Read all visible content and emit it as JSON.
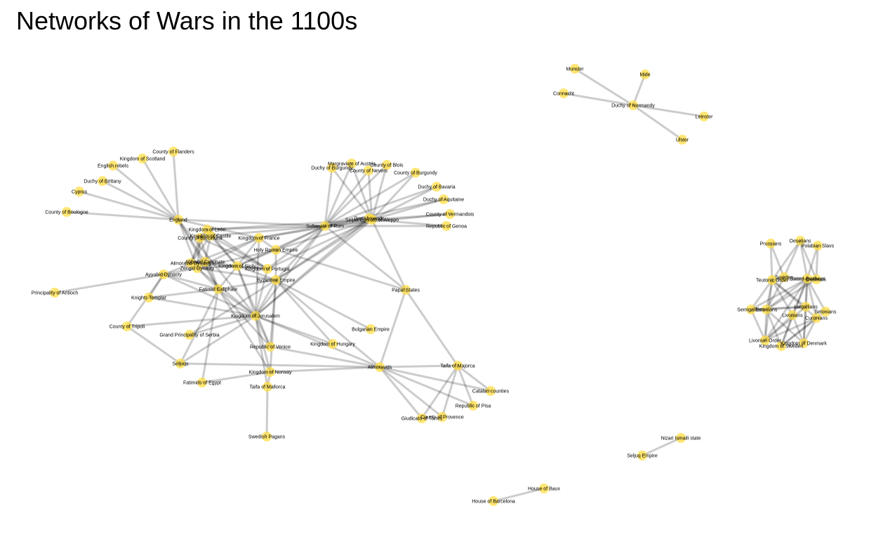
{
  "title": "Networks of Wars in the 1100s",
  "colors": {
    "node": "#FFDD44",
    "edge": "#000000",
    "background": "#FFFFFF"
  },
  "graph": {
    "nodes": [
      {
        "id": "england",
        "label": "England"
      },
      {
        "id": "leon",
        "label": "Kingdom of León"
      },
      {
        "id": "castile",
        "label": "Kingdom of Castile"
      },
      {
        "id": "barcelona",
        "label": "County of Barcelona"
      },
      {
        "id": "france",
        "label": "Kingdom of France"
      },
      {
        "id": "hre",
        "label": "Holy Roman Empire"
      },
      {
        "id": "abbasid",
        "label": "Abbasid Caliphate"
      },
      {
        "id": "almoravid_dyn",
        "label": "Almoravid Dynasty"
      },
      {
        "id": "zengid",
        "label": "Zengid Dynasty"
      },
      {
        "id": "sicily",
        "label": "Kingdom of Sicily"
      },
      {
        "id": "portugal",
        "label": "Kingdom of Portugal"
      },
      {
        "id": "ayyubid",
        "label": "Ayyubid Dynasty"
      },
      {
        "id": "byzantine",
        "label": "Byzantine Empire"
      },
      {
        "id": "fatimid",
        "label": "Fatimid Caliphate"
      },
      {
        "id": "antioch",
        "label": "Principality of Antioch"
      },
      {
        "id": "templar",
        "label": "Knights Templar"
      },
      {
        "id": "jerusalem",
        "label": "Kingdom of Jerusalem"
      },
      {
        "id": "tripoli",
        "label": "County of Tripoli"
      },
      {
        "id": "serbia",
        "label": "Grand Principality of Serbia"
      },
      {
        "id": "venice",
        "label": "Republic of Venice"
      },
      {
        "id": "hungary",
        "label": "Kingdom of Hungary"
      },
      {
        "id": "seljuqs",
        "label": "Seljuqs"
      },
      {
        "id": "norway",
        "label": "Kingdom of Norway"
      },
      {
        "id": "fatimids_egypt",
        "label": "Fatimids of Egypt"
      },
      {
        "id": "taifa_mallorca",
        "label": "Taifa of Mallorca"
      },
      {
        "id": "swedish_pagans",
        "label": "Swedish Pagans"
      },
      {
        "id": "flanders",
        "label": "County of Flanders"
      },
      {
        "id": "scotland",
        "label": "Kingdom of Scotland"
      },
      {
        "id": "english_rebels",
        "label": "English rebels"
      },
      {
        "id": "brittany",
        "label": "Duchy of Brittany"
      },
      {
        "id": "cyprus",
        "label": "Cyprus"
      },
      {
        "id": "boulogne",
        "label": "County of Boulogne"
      },
      {
        "id": "rum",
        "label": "Sultanate of Rum"
      },
      {
        "id": "danishmends",
        "label": "Danishmends"
      },
      {
        "id": "aleppo",
        "label": "Seljuk Emirate of Aleppo"
      },
      {
        "id": "dburgundy",
        "label": "Duchy of Burgundy"
      },
      {
        "id": "austria",
        "label": "Margraviate of Austria"
      },
      {
        "id": "blois",
        "label": "County of Blois"
      },
      {
        "id": "nevers",
        "label": "County of Nevers"
      },
      {
        "id": "cburgundy",
        "label": "County of Burgundy"
      },
      {
        "id": "bavaria",
        "label": "Duchy of Bavaria"
      },
      {
        "id": "aquitaine",
        "label": "Duchy of Aquitaine"
      },
      {
        "id": "vermandois",
        "label": "County of Vermandois"
      },
      {
        "id": "genoa",
        "label": "Republic of Genoa"
      },
      {
        "id": "papal",
        "label": "Papal States"
      },
      {
        "id": "bulgarian",
        "label": "Bulgarian Empire"
      },
      {
        "id": "almoravids",
        "label": "Almoravids"
      },
      {
        "id": "taifa_majorca",
        "label": "Taifa of Majorca"
      },
      {
        "id": "catalan",
        "label": "Catalan counties"
      },
      {
        "id": "pisa",
        "label": "Republic of Pisa"
      },
      {
        "id": "provence",
        "label": "County of Provence"
      },
      {
        "id": "torres",
        "label": "Giudicato of Torres"
      },
      {
        "id": "munster",
        "label": "Munster"
      },
      {
        "id": "mide",
        "label": "Mide"
      },
      {
        "id": "connacht",
        "label": "Connacht"
      },
      {
        "id": "normandy",
        "label": "Duchy of Normandy"
      },
      {
        "id": "leinster",
        "label": "Leinster"
      },
      {
        "id": "ulster",
        "label": "Ulster"
      },
      {
        "id": "prussians",
        "label": "Prussians"
      },
      {
        "id": "oeselians",
        "label": "Oeselians"
      },
      {
        "id": "polabian",
        "label": "Polabian Slavs"
      },
      {
        "id": "teutonic",
        "label": "Teutonic Order"
      },
      {
        "id": "sweden",
        "label": "Sweden"
      },
      {
        "id": "swordbrothers",
        "label": "Sword-Brothers"
      },
      {
        "id": "denmark",
        "label": "Denmark"
      },
      {
        "id": "semigallians",
        "label": "Semigallians"
      },
      {
        "id": "estonians",
        "label": "Estonians"
      },
      {
        "id": "latgallians",
        "label": "Latgallians"
      },
      {
        "id": "livonians",
        "label": "Livonians"
      },
      {
        "id": "selonians",
        "label": "Selonians"
      },
      {
        "id": "curonians",
        "label": "Curonians"
      },
      {
        "id": "livonian_order",
        "label": "Livonian Order"
      },
      {
        "id": "kdenmark",
        "label": "Kingdom of Denmark"
      },
      {
        "id": "ksweden",
        "label": "Kingdom of Sweden"
      },
      {
        "id": "nizari",
        "label": "Nizari Ismaili state"
      },
      {
        "id": "seljuq_empire",
        "label": "Seljuq Empire"
      },
      {
        "id": "baux",
        "label": "House of Baux"
      },
      {
        "id": "house_barcelona",
        "label": "House of Barcelona"
      }
    ],
    "edges": [
      [
        "england",
        "flanders"
      ],
      [
        "england",
        "scotland"
      ],
      [
        "england",
        "english_rebels"
      ],
      [
        "england",
        "brittany"
      ],
      [
        "england",
        "cyprus"
      ],
      [
        "england",
        "boulogne"
      ],
      [
        "england",
        "rum"
      ],
      [
        "england",
        "fatimid"
      ],
      [
        "england",
        "jerusalem"
      ],
      [
        "england",
        "france"
      ],
      [
        "england",
        "zengid"
      ],
      [
        "england",
        "abbasid"
      ],
      [
        "rum",
        "danishmends"
      ],
      [
        "rum",
        "dburgundy"
      ],
      [
        "rum",
        "austria"
      ],
      [
        "rum",
        "blois"
      ],
      [
        "rum",
        "nevers"
      ],
      [
        "rum",
        "cburgundy"
      ],
      [
        "rum",
        "bavaria"
      ],
      [
        "rum",
        "aquitaine"
      ],
      [
        "rum",
        "vermandois"
      ],
      [
        "rum",
        "genoa"
      ],
      [
        "rum",
        "byzantine"
      ],
      [
        "rum",
        "hre"
      ],
      [
        "rum",
        "france"
      ],
      [
        "rum",
        "papal"
      ],
      [
        "rum",
        "jerusalem"
      ],
      [
        "rum",
        "leon"
      ],
      [
        "rum",
        "sicily"
      ],
      [
        "rum",
        "portugal"
      ],
      [
        "rum",
        "castile"
      ],
      [
        "aleppo",
        "dburgundy"
      ],
      [
        "aleppo",
        "austria"
      ],
      [
        "aleppo",
        "blois"
      ],
      [
        "aleppo",
        "nevers"
      ],
      [
        "aleppo",
        "cburgundy"
      ],
      [
        "aleppo",
        "bavaria"
      ],
      [
        "aleppo",
        "aquitaine"
      ],
      [
        "aleppo",
        "vermandois"
      ],
      [
        "aleppo",
        "genoa"
      ],
      [
        "aleppo",
        "byzantine"
      ],
      [
        "aleppo",
        "jerusalem"
      ],
      [
        "aleppo",
        "france"
      ],
      [
        "aleppo",
        "papal"
      ],
      [
        "aleppo",
        "hre"
      ],
      [
        "aleppo",
        "portugal"
      ],
      [
        "aleppo",
        "leon"
      ],
      [
        "danishmends",
        "byzantine"
      ],
      [
        "danishmends",
        "jerusalem"
      ],
      [
        "leon",
        "castile"
      ],
      [
        "leon",
        "barcelona"
      ],
      [
        "leon",
        "portugal"
      ],
      [
        "leon",
        "almoravid_dyn"
      ],
      [
        "leon",
        "sicily"
      ],
      [
        "castile",
        "barcelona"
      ],
      [
        "castile",
        "portugal"
      ],
      [
        "castile",
        "almoravid_dyn"
      ],
      [
        "castile",
        "abbasid"
      ],
      [
        "castile",
        "sicily"
      ],
      [
        "barcelona",
        "almoravid_dyn"
      ],
      [
        "barcelona",
        "portugal"
      ],
      [
        "barcelona",
        "zengid"
      ],
      [
        "barcelona",
        "fatimid"
      ],
      [
        "france",
        "hre"
      ],
      [
        "france",
        "sicily"
      ],
      [
        "france",
        "zengid"
      ],
      [
        "france",
        "jerusalem"
      ],
      [
        "france",
        "ayyubid"
      ],
      [
        "hre",
        "sicily"
      ],
      [
        "hre",
        "byzantine"
      ],
      [
        "hre",
        "papal"
      ],
      [
        "hre",
        "zengid"
      ],
      [
        "abbasid",
        "zengid"
      ],
      [
        "abbasid",
        "fatimid"
      ],
      [
        "abbasid",
        "sicily"
      ],
      [
        "abbasid",
        "almoravid_dyn"
      ],
      [
        "zengid",
        "jerusalem"
      ],
      [
        "zengid",
        "fatimid"
      ],
      [
        "zengid",
        "sicily"
      ],
      [
        "zengid",
        "byzantine"
      ],
      [
        "zengid",
        "ayyubid"
      ],
      [
        "sicily",
        "byzantine"
      ],
      [
        "sicily",
        "fatimid"
      ],
      [
        "sicily",
        "jerusalem"
      ],
      [
        "sicily",
        "venice"
      ],
      [
        "sicily",
        "portugal"
      ],
      [
        "portugal",
        "almoravid_dyn"
      ],
      [
        "portugal",
        "jerusalem"
      ],
      [
        "ayyubid",
        "antioch"
      ],
      [
        "ayyubid",
        "templar"
      ],
      [
        "ayyubid",
        "fatimid"
      ],
      [
        "ayyubid",
        "jerusalem"
      ],
      [
        "ayyubid",
        "tripoli"
      ],
      [
        "fatimid",
        "templar"
      ],
      [
        "fatimid",
        "jerusalem"
      ],
      [
        "fatimid",
        "byzantine"
      ],
      [
        "fatimid",
        "venice"
      ],
      [
        "fatimid",
        "norway"
      ],
      [
        "fatimid",
        "fatimids_egypt"
      ],
      [
        "fatimid",
        "seljuqs"
      ],
      [
        "jerusalem",
        "templar"
      ],
      [
        "jerusalem",
        "tripoli"
      ],
      [
        "jerusalem",
        "serbia"
      ],
      [
        "jerusalem",
        "venice"
      ],
      [
        "jerusalem",
        "hungary"
      ],
      [
        "jerusalem",
        "norway"
      ],
      [
        "jerusalem",
        "seljuqs"
      ],
      [
        "jerusalem",
        "taifa_mallorca"
      ],
      [
        "jerusalem",
        "almoravids"
      ],
      [
        "jerusalem",
        "byzantine"
      ],
      [
        "byzantine",
        "serbia"
      ],
      [
        "byzantine",
        "hungary"
      ],
      [
        "byzantine",
        "venice"
      ],
      [
        "byzantine",
        "norway"
      ],
      [
        "byzantine",
        "almoravids"
      ],
      [
        "byzantine",
        "bulgarian"
      ],
      [
        "tripoli",
        "seljuqs"
      ],
      [
        "seljuqs",
        "almoravids"
      ],
      [
        "venice",
        "almoravids"
      ],
      [
        "norway",
        "almoravids"
      ],
      [
        "taifa_mallorca",
        "swedish_pagans"
      ],
      [
        "taifa_mallorca",
        "norway"
      ],
      [
        "fatimids_egypt",
        "norway"
      ],
      [
        "papal",
        "almoravids"
      ],
      [
        "papal",
        "taifa_majorca"
      ],
      [
        "almoravids",
        "catalan"
      ],
      [
        "almoravids",
        "pisa"
      ],
      [
        "almoravids",
        "provence"
      ],
      [
        "almoravids",
        "torres"
      ],
      [
        "almoravids",
        "taifa_majorca"
      ],
      [
        "taifa_majorca",
        "catalan"
      ],
      [
        "taifa_majorca",
        "pisa"
      ],
      [
        "taifa_majorca",
        "provence"
      ],
      [
        "taifa_majorca",
        "torres"
      ],
      [
        "normandy",
        "munster"
      ],
      [
        "normandy",
        "mide"
      ],
      [
        "normandy",
        "connacht"
      ],
      [
        "normandy",
        "leinster"
      ],
      [
        "normandy",
        "ulster"
      ],
      [
        "teutonic",
        "prussians"
      ],
      [
        "teutonic",
        "oeselians"
      ],
      [
        "teutonic",
        "semigallians"
      ],
      [
        "teutonic",
        "livonian_order"
      ],
      [
        "teutonic",
        "latgallians"
      ],
      [
        "teutonic",
        "livonians"
      ],
      [
        "teutonic",
        "estonians"
      ],
      [
        "teutonic",
        "curonians"
      ],
      [
        "teutonic",
        "sweden"
      ],
      [
        "teutonic",
        "denmark"
      ],
      [
        "swordbrothers",
        "oeselians"
      ],
      [
        "swordbrothers",
        "polabian"
      ],
      [
        "swordbrothers",
        "estonians"
      ],
      [
        "swordbrothers",
        "semigallians"
      ],
      [
        "swordbrothers",
        "livonians"
      ],
      [
        "swordbrothers",
        "latgallians"
      ],
      [
        "swordbrothers",
        "selonians"
      ],
      [
        "swordbrothers",
        "curonians"
      ],
      [
        "swordbrothers",
        "kdenmark"
      ],
      [
        "swordbrothers",
        "ksweden"
      ],
      [
        "swordbrothers",
        "livonian_order"
      ],
      [
        "denmark",
        "polabian"
      ],
      [
        "denmark",
        "oeselians"
      ],
      [
        "denmark",
        "estonians"
      ],
      [
        "denmark",
        "sweden"
      ],
      [
        "sweden",
        "estonians"
      ],
      [
        "sweden",
        "prussians"
      ],
      [
        "sweden",
        "oeselians"
      ],
      [
        "livonian_order",
        "semigallians"
      ],
      [
        "livonian_order",
        "curonians"
      ],
      [
        "livonian_order",
        "latgallians"
      ],
      [
        "livonian_order",
        "estonians"
      ],
      [
        "livonian_order",
        "livonians"
      ],
      [
        "kdenmark",
        "estonians"
      ],
      [
        "kdenmark",
        "livonians"
      ],
      [
        "kdenmark",
        "curonians"
      ],
      [
        "kdenmark",
        "latgallians"
      ],
      [
        "ksweden",
        "estonians"
      ],
      [
        "ksweden",
        "curonians"
      ],
      [
        "ksweden",
        "livonians"
      ],
      [
        "ksweden",
        "selonians"
      ],
      [
        "semigallians",
        "latgallians"
      ],
      [
        "estonians",
        "latgallians"
      ],
      [
        "nizari",
        "seljuq_empire"
      ],
      [
        "baux",
        "house_barcelona"
      ]
    ]
  }
}
